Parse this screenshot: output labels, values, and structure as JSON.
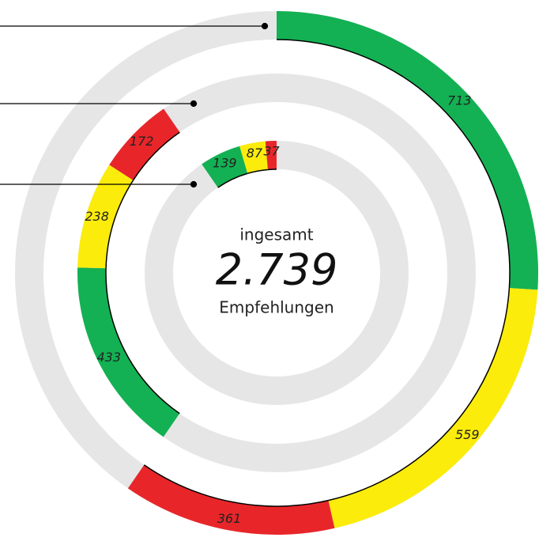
{
  "chart_data": {
    "type": "radial_bar",
    "series": [
      {
        "values": [
          713,
          559,
          361
        ]
      },
      {
        "values": [
          433,
          238,
          172
        ]
      },
      {
        "values": [
          139,
          87,
          37
        ]
      }
    ],
    "colors": [
      "#13b153",
      "#fbec0c",
      "#e8262a"
    ],
    "track_color": "#e6e6e6",
    "center_top": "ingesamt",
    "total": {
      "value": 2739,
      "label": "2.739"
    },
    "center_bottom": "Empfehlungen"
  }
}
